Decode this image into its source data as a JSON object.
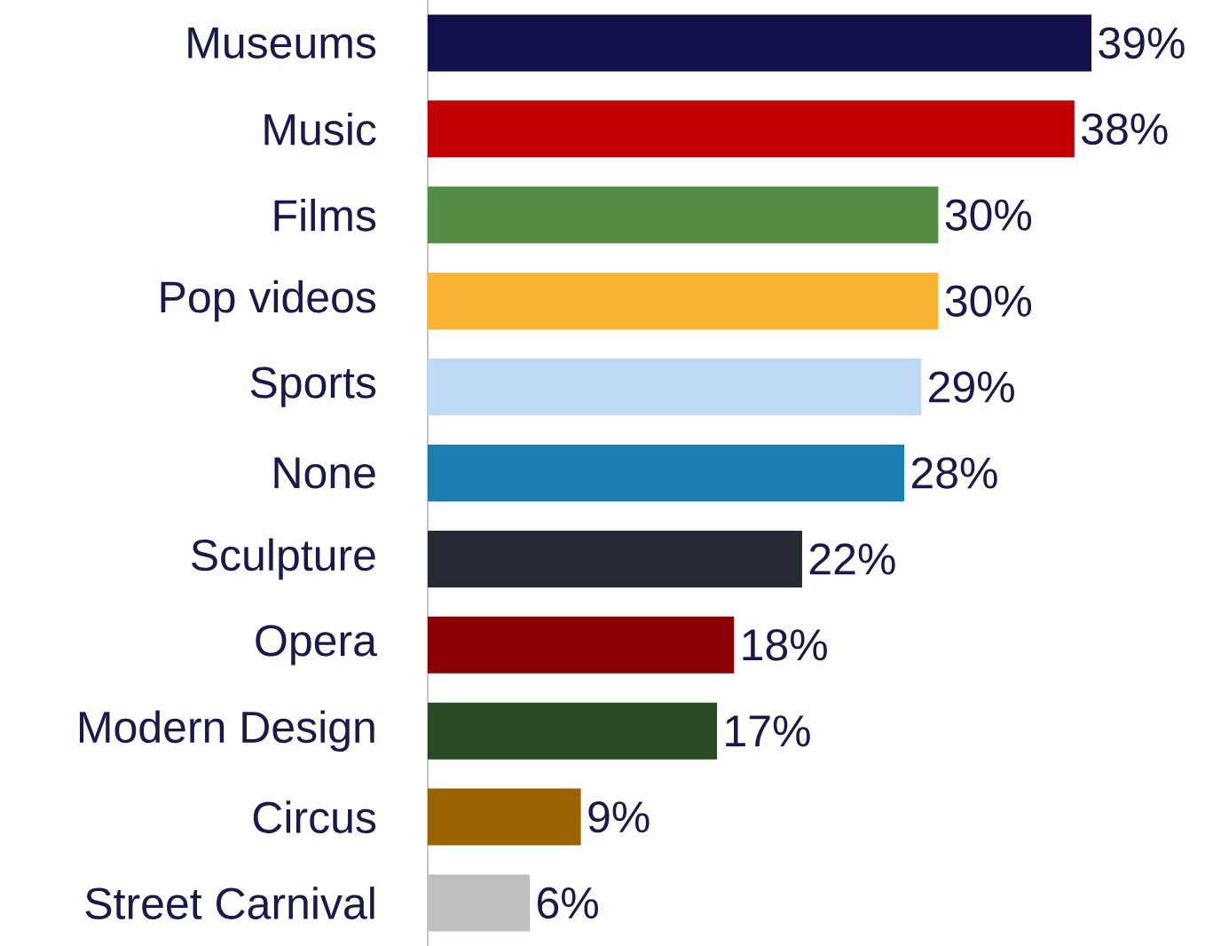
{
  "chart_data": {
    "type": "bar",
    "orientation": "horizontal",
    "categories": [
      "Museums",
      "Music",
      "Films",
      "Pop videos",
      "Sports",
      "None",
      "Sculpture",
      "Opera",
      "Modern Design",
      "Circus",
      "Street Carnival"
    ],
    "values": [
      39,
      38,
      30,
      30,
      29,
      28,
      22,
      18,
      17,
      9,
      6
    ],
    "colors": [
      "#12104a",
      "#c00000",
      "#548e46",
      "#fbb432",
      "#c0daf5",
      "#1a7fb0",
      "#262a35",
      "#8b0000",
      "#2a4a26",
      "#9a6200",
      "#bfbfbf"
    ],
    "value_labels": [
      "39%",
      "38%",
      "30%",
      "30%",
      "29%",
      "28%",
      "22%",
      "18%",
      "17%",
      "9%",
      "6%"
    ]
  }
}
